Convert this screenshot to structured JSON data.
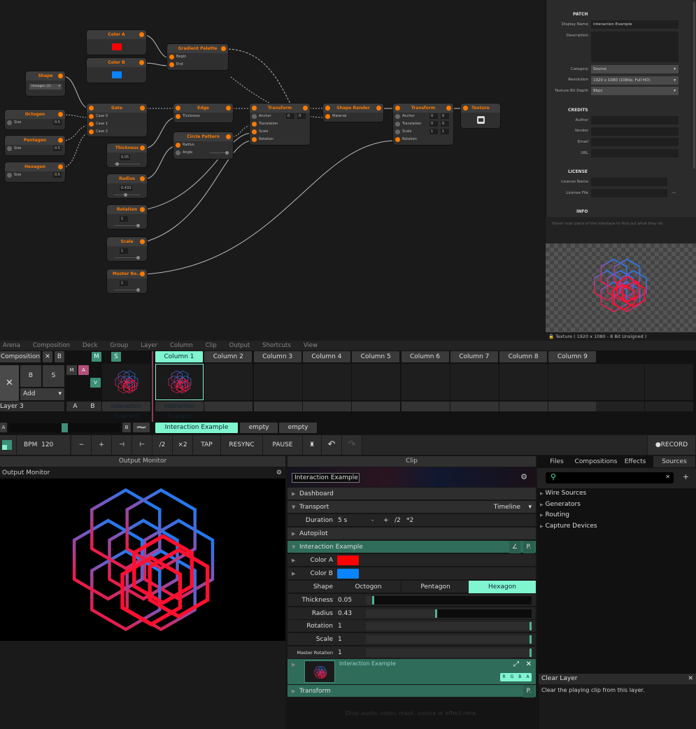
{
  "colors": {
    "accent": "#7ff5d0",
    "port": "#ff7a00",
    "colorA": "#ff0000",
    "colorB": "#0a84ff",
    "teal_dark": "#2f6d5a"
  },
  "graph": {
    "nodes": {
      "color_a": {
        "title": "Color A"
      },
      "color_b": {
        "title": "Color B"
      },
      "gradient": {
        "title": "Gradient Palette",
        "ports": [
          "Begin",
          "End"
        ]
      },
      "shape": {
        "title": "Shape",
        "value": "Hexagon (2)"
      },
      "octogon": {
        "title": "Octogon",
        "param": "Size",
        "value": "0.5"
      },
      "pentagon": {
        "title": "Pentagon",
        "param": "Size",
        "value": "0.5"
      },
      "hexagon": {
        "title": "Hexagon",
        "param": "Size",
        "value": "0.5"
      },
      "gate": {
        "title": "Gate",
        "ports": [
          "Case 0",
          "Case 1",
          "Case 2"
        ]
      },
      "edge": {
        "title": "Edge",
        "ports": [
          "Thickness"
        ]
      },
      "circle": {
        "title": "Circle Pattern",
        "ports": [
          "Radius",
          "Angle"
        ]
      },
      "thickness": {
        "title": "Thickness",
        "value": "0.05",
        "level": 0.05
      },
      "radius": {
        "title": "Radius",
        "value": "0.433",
        "level": 0.43
      },
      "rotation": {
        "title": "Rotation",
        "value": "1",
        "level": 1
      },
      "scale": {
        "title": "Scale",
        "value": "1",
        "level": 1
      },
      "master": {
        "title": "Master Ro...",
        "value": "1",
        "level": 1
      },
      "transform1": {
        "title": "Transform",
        "ports": [
          "Anchor",
          "Translation",
          "Scale",
          "Rotation"
        ],
        "anchor": [
          "0",
          "0"
        ]
      },
      "shape_render": {
        "title": "Shape Render",
        "ports": [
          "Material"
        ]
      },
      "transform2": {
        "title": "Transform",
        "ports": [
          "Anchor",
          "Translation",
          "Scale",
          "Rotation"
        ],
        "anchor": [
          "0",
          "0"
        ],
        "translation": [
          "0",
          "0"
        ],
        "scale": [
          "1",
          "1"
        ]
      },
      "texture": {
        "title": "Texture"
      }
    }
  },
  "props": {
    "patch": "PATCH",
    "display_name_label": "Display Name",
    "display_name": "Interaction Example",
    "description_label": "Description",
    "category_label": "Category",
    "category": "Source",
    "resolution_label": "Resolution",
    "resolution": "1920 x 1080 (1080p, Full HD)",
    "bitdepth_label": "Texture Bit Depth",
    "bitdepth": "8bpc",
    "credits": "CREDITS",
    "author": "Author",
    "vendor": "Vendor",
    "email": "Email",
    "url": "URL",
    "license": "LICENSE",
    "license_name": "License Name",
    "license_file": "License File",
    "more": "...",
    "info": "INFO",
    "hint": "Hover over parts of the interface to find out what they do.",
    "preview_caption": "Texture ( 1920 x 1080 - 8 Bit Unsigned )"
  },
  "menu": [
    "Arena",
    "Composition",
    "Deck",
    "Group",
    "Layer",
    "Column",
    "Clip",
    "Output",
    "Shortcuts",
    "View"
  ],
  "deck": {
    "composition": "Composition",
    "x": "✕",
    "b": "B",
    "m": "M",
    "s": "S",
    "columns": [
      "Column 1",
      "Column 2",
      "Column 3",
      "Column 4",
      "Column 5",
      "Column 6",
      "Column 7",
      "Column 8",
      "Column 9"
    ],
    "layer": {
      "name": "Layer 3",
      "x": "✕",
      "b": "B",
      "s": "S",
      "add": "Add",
      "m": "M",
      "a": "A",
      "v": "V",
      "ab_a": "A",
      "ab_b": "B"
    },
    "clips": [
      "Interaction Example",
      "Interaction Example"
    ],
    "crossfader": {
      "a": "A",
      "b": "B",
      "level": 0.5
    },
    "clip_tabs": [
      "Interaction Example",
      "empty",
      "empty"
    ]
  },
  "transport": {
    "bpm_label": "BPM",
    "bpm": "120",
    "minus": "−",
    "plus": "+",
    "nudge_back": "⊣",
    "nudge_fwd": "⊢",
    "half": "/2",
    "double": "×2",
    "tap": "TAP",
    "resync": "RESYNC",
    "pause": "PAUSE",
    "record": "RECORD"
  },
  "output": {
    "header": "Output Monitor",
    "title": "Output Monitor"
  },
  "clip": {
    "header": "Clip",
    "name": "Interaction Example",
    "dashboard": "Dashboard",
    "transport": "Transport",
    "timeline": "Timeline",
    "duration_label": "Duration",
    "duration": "5 s",
    "dminus": "-",
    "dplus": "+",
    "dhalf": "/2",
    "ddouble": "*2",
    "autopilot": "Autopilot",
    "section": "Interaction Example",
    "p": "P.",
    "color_a": "Color A",
    "color_b": "Color B",
    "shape_label": "Shape",
    "shapes": [
      "Octogon",
      "Pentagon",
      "Hexagon"
    ],
    "params": [
      {
        "label": "Thickness",
        "value": "0.05",
        "level": 0.05
      },
      {
        "label": "Radius",
        "value": "0.43",
        "level": 0.43
      },
      {
        "label": "Rotation",
        "value": "1",
        "level": 1
      },
      {
        "label": "Scale",
        "value": "1",
        "level": 1
      },
      {
        "label": "Master Rotation",
        "value": "1",
        "level": 1
      }
    ],
    "effect_name": "Interaction Example",
    "rgba": [
      "R",
      "G",
      "B",
      "A"
    ],
    "transform_section": "Transform",
    "drop_hint": "Drop audio, video, mask, source or effect here."
  },
  "browser": {
    "tabs": [
      "Files",
      "Compositions",
      "Effects",
      "Sources"
    ],
    "search_placeholder": "",
    "items": [
      "Wire Sources",
      "Generators",
      "Routing",
      "Capture Devices"
    ]
  },
  "tooltip": {
    "title": "Clear Layer",
    "text": "Clear the playing clip from this layer."
  }
}
